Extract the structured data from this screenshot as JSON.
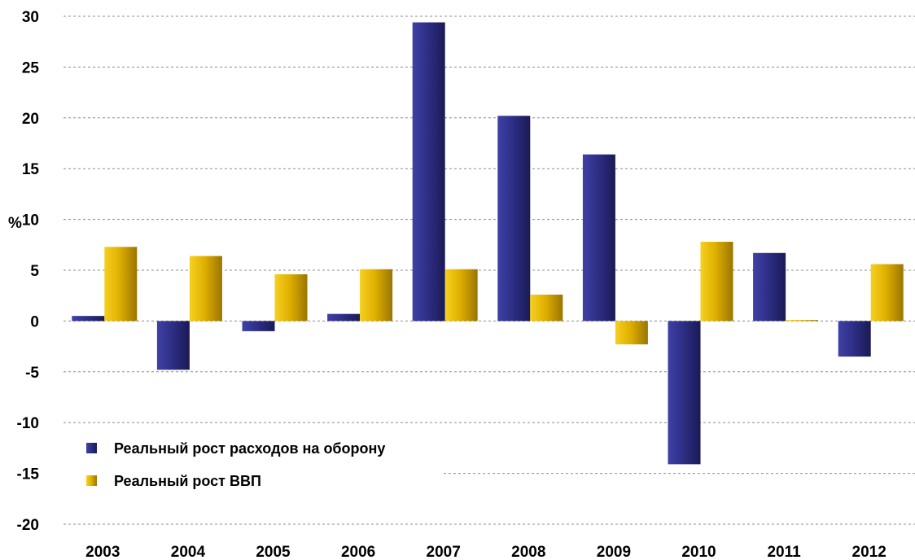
{
  "chart_data": {
    "type": "bar",
    "categories": [
      "2003",
      "2004",
      "2005",
      "2006",
      "2007",
      "2008",
      "2009",
      "2010",
      "2011",
      "2012"
    ],
    "series": [
      {
        "name": "Реальный рост расходов на оборону",
        "values": [
          0.5,
          -4.8,
          -1.0,
          0.7,
          29.4,
          20.2,
          16.4,
          -14.1,
          6.7,
          -3.5
        ],
        "color": "#2e2f86"
      },
      {
        "name": "Реальный рост ВВП",
        "values": [
          7.3,
          6.4,
          4.6,
          5.1,
          5.1,
          2.6,
          -2.3,
          7.8,
          0.1,
          5.6
        ],
        "color": "#e0b000"
      }
    ],
    "title": "",
    "xlabel": "",
    "ylabel": "%",
    "ylim": [
      -20,
      30
    ],
    "yticks": [
      30,
      25,
      20,
      15,
      10,
      5,
      0,
      -5,
      -10,
      -15,
      -20
    ],
    "grid": true,
    "legend_position": "lower-left"
  }
}
